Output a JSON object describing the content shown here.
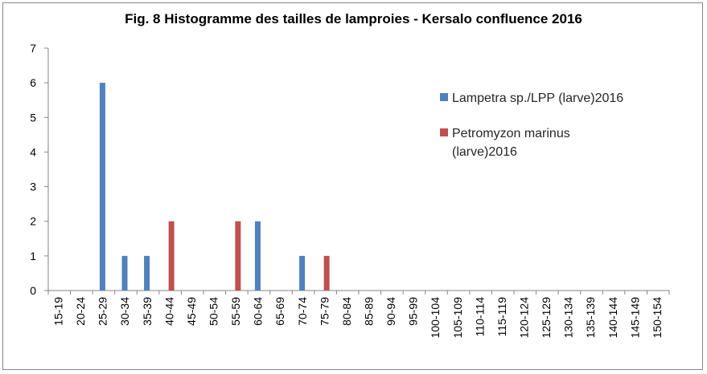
{
  "chart_data": {
    "type": "bar",
    "title": "Fig. 8 Histogramme des tailles de lamproies - Kersalo confluence 2016",
    "xlabel": "",
    "ylabel": "",
    "ylim": [
      0,
      7
    ],
    "yticks": [
      0,
      1,
      2,
      3,
      4,
      5,
      6,
      7
    ],
    "grid": false,
    "legend_position": "right",
    "categories": [
      "15-19",
      "20-24",
      "25-29",
      "30-34",
      "35-39",
      "40-44",
      "45-49",
      "50-54",
      "55-59",
      "60-64",
      "65-69",
      "70-74",
      "75-79",
      "80-84",
      "85-89",
      "90-94",
      "95-99",
      "100-104",
      "105-109",
      "110-114",
      "115-119",
      "120-124",
      "125-129",
      "130-134",
      "135-139",
      "140-144",
      "145-149",
      "150-154"
    ],
    "series": [
      {
        "name": "Lampetra sp./LPP (larve)2016",
        "color": "#4f81bd",
        "values": [
          0,
          0,
          6,
          1,
          1,
          0,
          0,
          0,
          0,
          2,
          0,
          1,
          0,
          0,
          0,
          0,
          0,
          0,
          0,
          0,
          0,
          0,
          0,
          0,
          0,
          0,
          0,
          0
        ]
      },
      {
        "name": "Petromyzon marinus (larve)2016",
        "color": "#c0504d",
        "values": [
          0,
          0,
          0,
          0,
          0,
          2,
          0,
          0,
          2,
          0,
          0,
          0,
          1,
          0,
          0,
          0,
          0,
          0,
          0,
          0,
          0,
          0,
          0,
          0,
          0,
          0,
          0,
          0
        ]
      }
    ]
  }
}
